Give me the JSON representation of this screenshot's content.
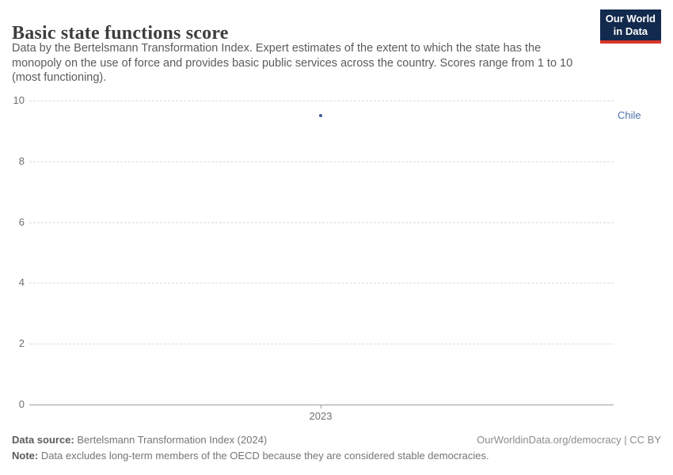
{
  "header": {
    "title": "Basic state functions score",
    "subtitle": "Data by the Bertelsmann Transformation Index. Expert estimates of the extent to which the state has the monopoly on the use of force and provides basic public services across the country. Scores range from 1 to 10 (most functioning).",
    "logo": {
      "line1": "Our World",
      "line2": "in Data"
    }
  },
  "chart_data": {
    "type": "scatter",
    "title": "Basic state functions score",
    "x": [
      2023
    ],
    "series": [
      {
        "name": "Chile",
        "values": [
          9.5
        ]
      }
    ],
    "xlabel": "",
    "ylabel": "",
    "ylim": [
      0,
      10
    ],
    "yticks": [
      0,
      2,
      4,
      6,
      8,
      10
    ],
    "xticks": [
      "2023"
    ],
    "grid": true,
    "gridline_style": "dashed",
    "legend_position": "right-of-point",
    "colors": {
      "point": "#3d5c94",
      "entity_label": "#4d6fa8",
      "gridline": "#dcdcdc",
      "axis": "#9e9e9e",
      "tick_text": "#6f6f6f"
    }
  },
  "footer": {
    "data_source_label": "Data source:",
    "data_source_value": " Bertelsmann Transformation Index (2024)",
    "rights": "OurWorldinData.org/democracy | CC BY",
    "note_label": "Note:",
    "note_value": " Data excludes long-term members of the OECD because they are considered stable democracies."
  },
  "brand": {
    "logo_bg": "#122a4d",
    "logo_stripe": "#d8352a"
  }
}
